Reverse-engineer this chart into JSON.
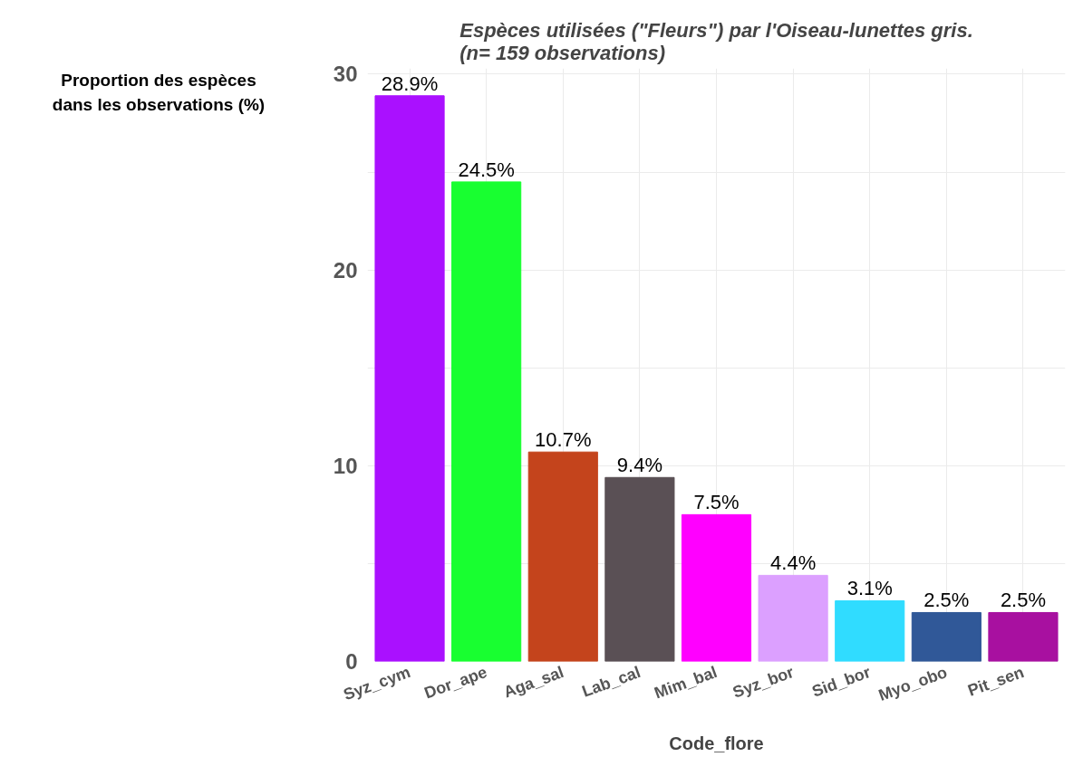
{
  "chart_data": {
    "type": "bar",
    "title": "Espèces utilisées (\"Fleurs\") par l'Oiseau-lunettes gris.\n(n= 159 observations)",
    "xlabel": "Code_flore",
    "ylabel": "Proportion des espèces\ndans les observations (%)",
    "categories": [
      "Syz_cym",
      "Dor_ape",
      "Aga_sal",
      "Lab_cal",
      "Mim_bal",
      "Syz_bor",
      "Sid_bor",
      "Myo_obo",
      "Pit_sen"
    ],
    "values": [
      28.9,
      24.5,
      10.7,
      9.4,
      7.5,
      4.4,
      3.1,
      2.5,
      2.5
    ],
    "colors": [
      "#aa10ff",
      "#18ff30",
      "#c4441c",
      "#5a5055",
      "#ff00ff",
      "#dca0ff",
      "#30dcff",
      "#305898",
      "#a810a0"
    ],
    "value_labels": [
      "28.9%",
      "24.5%",
      "10.7%",
      "9.4%",
      "7.5%",
      "4.4%",
      "3.1%",
      "2.5%",
      "2.5%"
    ],
    "ylim": [
      0,
      30.3
    ],
    "yticks": [
      0,
      {
        "value": 5,
        "label": null
      },
      10,
      {
        "value": 15,
        "label": null
      },
      20,
      {
        "value": 25,
        "label": null
      },
      30
    ],
    "grid": true
  }
}
